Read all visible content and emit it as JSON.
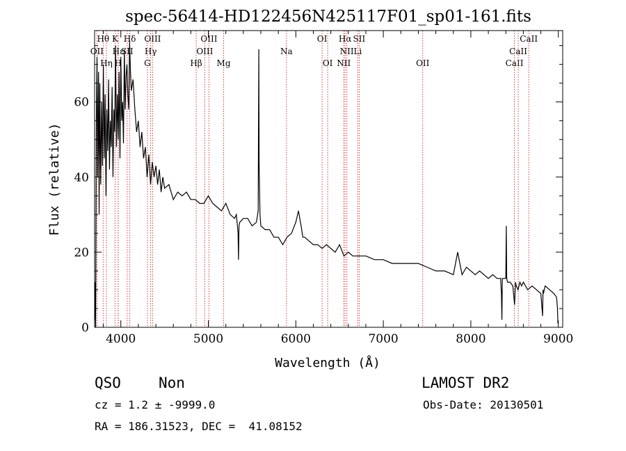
{
  "chart_data": {
    "type": "line",
    "title": "spec-56414-HD122456N425117F01_sp01-161.fits",
    "xlabel": "Wavelength (Å)",
    "ylabel": "Flux (relative)",
    "xlim": [
      3700,
      9050
    ],
    "ylim": [
      0,
      79
    ],
    "xticks": [
      4000,
      5000,
      6000,
      7000,
      8000,
      9000
    ],
    "yticks": [
      0,
      20,
      40,
      60
    ],
    "grid": false,
    "series": [
      {
        "x": [
          3700,
          3705,
          3712,
          3720,
          3728,
          3735,
          3745,
          3752,
          3760,
          3770,
          3780,
          3790,
          3800,
          3810,
          3820,
          3830,
          3840,
          3850,
          3860,
          3870,
          3880,
          3890,
          3900,
          3910,
          3920,
          3930,
          3940,
          3950,
          3960,
          3970,
          3980,
          3990,
          4000,
          4010,
          4020,
          4030,
          4040,
          4050,
          4060,
          4070,
          4080,
          4090,
          4100,
          4110,
          4120,
          4140,
          4160,
          4180,
          4200,
          4220,
          4240,
          4260,
          4280,
          4300,
          4320,
          4340,
          4360,
          4380,
          4400,
          4420,
          4440,
          4460,
          4480,
          4500,
          4550,
          4600,
          4650,
          4700,
          4750,
          4800,
          4850,
          4900,
          4950,
          5000,
          5050,
          5100,
          5150,
          5200,
          5250,
          5300,
          5320,
          5340,
          5345,
          5350,
          5360,
          5400,
          5450,
          5500,
          5550,
          5570,
          5577,
          5580,
          5590,
          5600,
          5650,
          5700,
          5750,
          5800,
          5850,
          5900,
          5950,
          6000,
          6030,
          6060,
          6080,
          6100,
          6150,
          6200,
          6250,
          6300,
          6350,
          6400,
          6450,
          6500,
          6550,
          6600,
          6650,
          6700,
          6750,
          6800,
          6900,
          7000,
          7100,
          7200,
          7300,
          7400,
          7500,
          7600,
          7700,
          7800,
          7850,
          7900,
          7950,
          8000,
          8050,
          8100,
          8150,
          8200,
          8250,
          8300,
          8340,
          8350,
          8355,
          8360,
          8380,
          8400,
          8405,
          8410,
          8420,
          8450,
          8480,
          8500,
          8510,
          8520,
          8540,
          8560,
          8580,
          8600,
          8650,
          8700,
          8750,
          8800,
          8820,
          8825,
          8830,
          8850,
          8900,
          8950,
          8980,
          8990,
          8995
        ],
        "y": [
          2,
          12,
          0,
          55,
          72,
          40,
          68,
          30,
          65,
          38,
          60,
          43,
          70,
          45,
          62,
          35,
          58,
          47,
          66,
          42,
          55,
          48,
          64,
          40,
          58,
          52,
          75,
          48,
          62,
          50,
          68,
          45,
          72,
          55,
          60,
          49,
          74,
          58,
          67,
          70,
          62,
          58,
          76,
          68,
          63,
          66,
          58,
          52,
          55,
          48,
          52,
          45,
          48,
          40,
          46,
          38,
          44,
          40,
          43,
          38,
          42,
          36,
          40,
          37,
          38,
          34,
          36,
          35,
          36,
          34,
          34,
          33,
          33,
          35,
          33,
          32,
          31,
          33,
          30,
          29,
          30,
          25,
          18,
          27,
          28,
          29,
          29,
          27,
          28,
          31,
          74,
          44,
          30,
          27,
          26,
          26,
          24,
          24,
          22,
          24,
          25,
          28,
          31,
          27,
          24,
          24,
          23,
          22,
          22,
          21,
          22,
          21,
          20,
          22,
          19,
          20,
          19,
          19,
          19,
          19,
          18,
          18,
          17,
          17,
          17,
          17,
          16,
          15,
          15,
          14,
          20,
          14,
          16,
          15,
          14,
          15,
          14,
          13,
          14,
          13,
          13,
          9,
          2,
          13,
          13,
          13,
          27,
          13,
          12,
          12,
          11,
          6,
          12,
          11,
          10,
          12,
          11,
          12,
          10,
          11,
          10,
          9,
          3,
          10,
          9,
          11,
          10,
          9,
          8,
          5,
          1
        ]
      }
    ],
    "lines": [
      {
        "name": "Hθ",
        "x": 3798,
        "row": 0
      },
      {
        "name": "OII",
        "x": 3727,
        "row": 1
      },
      {
        "name": "Hη",
        "x": 3835,
        "row": 2
      },
      {
        "name": "K",
        "x": 3934,
        "row": 0
      },
      {
        "name": "H",
        "x": 3969,
        "row": 2
      },
      {
        "name": "Hε",
        "x": 3970,
        "row": 1
      },
      {
        "name": "SII",
        "x": 4072,
        "row": 1
      },
      {
        "name": "Hδ",
        "x": 4102,
        "row": 0
      },
      {
        "name": "OIII",
        "x": 4363,
        "row": 0
      },
      {
        "name": "Hγ",
        "x": 4341,
        "row": 1
      },
      {
        "name": "G",
        "x": 4304,
        "row": 2
      },
      {
        "name": "Hβ",
        "x": 4861,
        "row": 2
      },
      {
        "name": "OIII",
        "x": 4959,
        "row": 1
      },
      {
        "name": "OIII",
        "x": 5007,
        "row": 0
      },
      {
        "name": "Mg",
        "x": 5175,
        "row": 2
      },
      {
        "name": "Na",
        "x": 5893,
        "row": 1
      },
      {
        "name": "OI",
        "x": 6300,
        "row": 0
      },
      {
        "name": "OI",
        "x": 6364,
        "row": 2
      },
      {
        "name": "NII",
        "x": 6548,
        "row": 2
      },
      {
        "name": "Hα",
        "x": 6563,
        "row": 0
      },
      {
        "name": "NII",
        "x": 6583,
        "row": 1
      },
      {
        "name": "Li",
        "x": 6708,
        "row": 1
      },
      {
        "name": "SII",
        "x": 6724,
        "row": 0
      },
      {
        "name": "OII",
        "x": 7450,
        "row": 2
      },
      {
        "name": "CaII",
        "x": 8498,
        "row": 2
      },
      {
        "name": "CaII",
        "x": 8542,
        "row": 1
      },
      {
        "name": "CaII",
        "x": 8662,
        "row": 0
      }
    ]
  },
  "info": {
    "class": "QSO",
    "subclass": "Non",
    "survey": "LAMOST DR2",
    "cz": "cz = 1.2 ± -9999.0",
    "obs_date": "Obs-Date: 20130501",
    "coords": "RA = 186.31523, DEC =  41.08152"
  }
}
